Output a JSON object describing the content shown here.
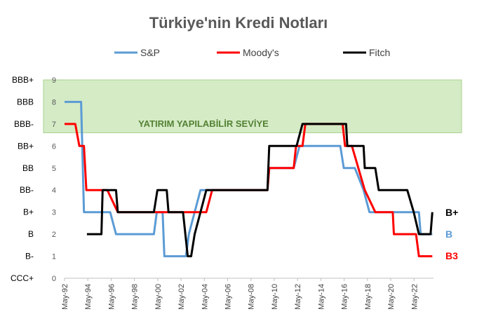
{
  "chart_data": {
    "type": "line",
    "title": "Türkiye'nin Kredi Notları",
    "ylim": [
      0,
      9
    ],
    "y_ticks": [
      0,
      1,
      2,
      3,
      4,
      5,
      6,
      7,
      8,
      9
    ],
    "rating_labels": [
      "CCC+",
      "B-",
      "B",
      "B+",
      "BB-",
      "BB",
      "BB+",
      "BBB-",
      "BBB",
      "BBB+"
    ],
    "x_range": [
      1992.33,
      2024.0
    ],
    "x_ticks": [
      "May-92",
      "May-94",
      "May-96",
      "May-98",
      "May-00",
      "May-02",
      "May-04",
      "May-06",
      "May-08",
      "May-10",
      "May-12",
      "May-14",
      "May-16",
      "May-18",
      "May-20",
      "May-22"
    ],
    "investment_band": {
      "label": "YATIRIM YAPILABİLİR SEVİYE",
      "from": 6.6,
      "to": 9,
      "color": "#d5ebc6"
    },
    "legend_position": "top",
    "series": [
      {
        "name": "S&P",
        "color": "#5b9bd5",
        "points": [
          [
            1992.33,
            8
          ],
          [
            1993.75,
            8
          ],
          [
            1994.0,
            3
          ],
          [
            1996.25,
            3
          ],
          [
            1996.75,
            2
          ],
          [
            2000.0,
            2
          ],
          [
            2000.25,
            3
          ],
          [
            2000.75,
            3
          ],
          [
            2000.9,
            1
          ],
          [
            2002.75,
            1
          ],
          [
            2003.0,
            2
          ],
          [
            2004.0,
            4
          ],
          [
            2009.75,
            4
          ],
          [
            2009.9,
            5
          ],
          [
            2012.0,
            5
          ],
          [
            2012.5,
            6
          ],
          [
            2016.0,
            6
          ],
          [
            2016.3,
            5
          ],
          [
            2017.25,
            5
          ],
          [
            2018.0,
            4
          ],
          [
            2018.5,
            3
          ],
          [
            2022.75,
            3
          ],
          [
            2022.9,
            2
          ],
          [
            2023.9,
            2
          ]
        ]
      },
      {
        "name": "Moody's",
        "color": "#ff0000",
        "points": [
          [
            1992.33,
            7
          ],
          [
            1993.25,
            7
          ],
          [
            1993.6,
            6
          ],
          [
            1994.0,
            6
          ],
          [
            1994.2,
            4
          ],
          [
            1995.5,
            4
          ],
          [
            1996.0,
            4
          ],
          [
            1996.9,
            3
          ],
          [
            2000.0,
            3
          ],
          [
            2001.5,
            3
          ],
          [
            2001.7,
            3
          ],
          [
            2003.0,
            3
          ],
          [
            2003.2,
            3
          ],
          [
            2004.5,
            3
          ],
          [
            2005.0,
            4
          ],
          [
            2009.75,
            4
          ],
          [
            2009.9,
            5
          ],
          [
            2012.0,
            5
          ],
          [
            2012.2,
            6
          ],
          [
            2012.75,
            6
          ],
          [
            2013.0,
            7
          ],
          [
            2016.2,
            7
          ],
          [
            2016.4,
            6
          ],
          [
            2017.0,
            6
          ],
          [
            2018.1,
            4
          ],
          [
            2019.0,
            3
          ],
          [
            2020.5,
            3
          ],
          [
            2020.6,
            2
          ],
          [
            2022.5,
            2
          ],
          [
            2022.75,
            1
          ],
          [
            2023.9,
            1
          ]
        ]
      },
      {
        "name": "Fitch",
        "color": "#000000",
        "points": [
          [
            1994.25,
            2
          ],
          [
            1995.5,
            2
          ],
          [
            1995.6,
            4
          ],
          [
            1996.75,
            4
          ],
          [
            1996.9,
            3
          ],
          [
            2000.0,
            3
          ],
          [
            2000.3,
            4
          ],
          [
            2001.1,
            4
          ],
          [
            2001.25,
            3
          ],
          [
            2002.5,
            3
          ],
          [
            2002.9,
            1
          ],
          [
            2003.2,
            1
          ],
          [
            2003.5,
            2
          ],
          [
            2004.0,
            3
          ],
          [
            2004.5,
            4
          ],
          [
            2009.75,
            4
          ],
          [
            2009.9,
            6
          ],
          [
            2012.25,
            6
          ],
          [
            2012.75,
            7
          ],
          [
            2016.5,
            7
          ],
          [
            2016.6,
            6
          ],
          [
            2018.0,
            6
          ],
          [
            2018.1,
            5
          ],
          [
            2019.0,
            5
          ],
          [
            2019.3,
            4
          ],
          [
            2021.75,
            4
          ],
          [
            2022.3,
            3
          ],
          [
            2022.75,
            2
          ],
          [
            2023.75,
            2
          ],
          [
            2023.9,
            3
          ]
        ]
      }
    ],
    "end_labels": [
      {
        "text": "B+",
        "color": "#000000",
        "value": 3
      },
      {
        "text": "B",
        "color": "#5b9bd5",
        "value": 2
      },
      {
        "text": "B3",
        "color": "#ff0000",
        "value": 1
      }
    ]
  }
}
